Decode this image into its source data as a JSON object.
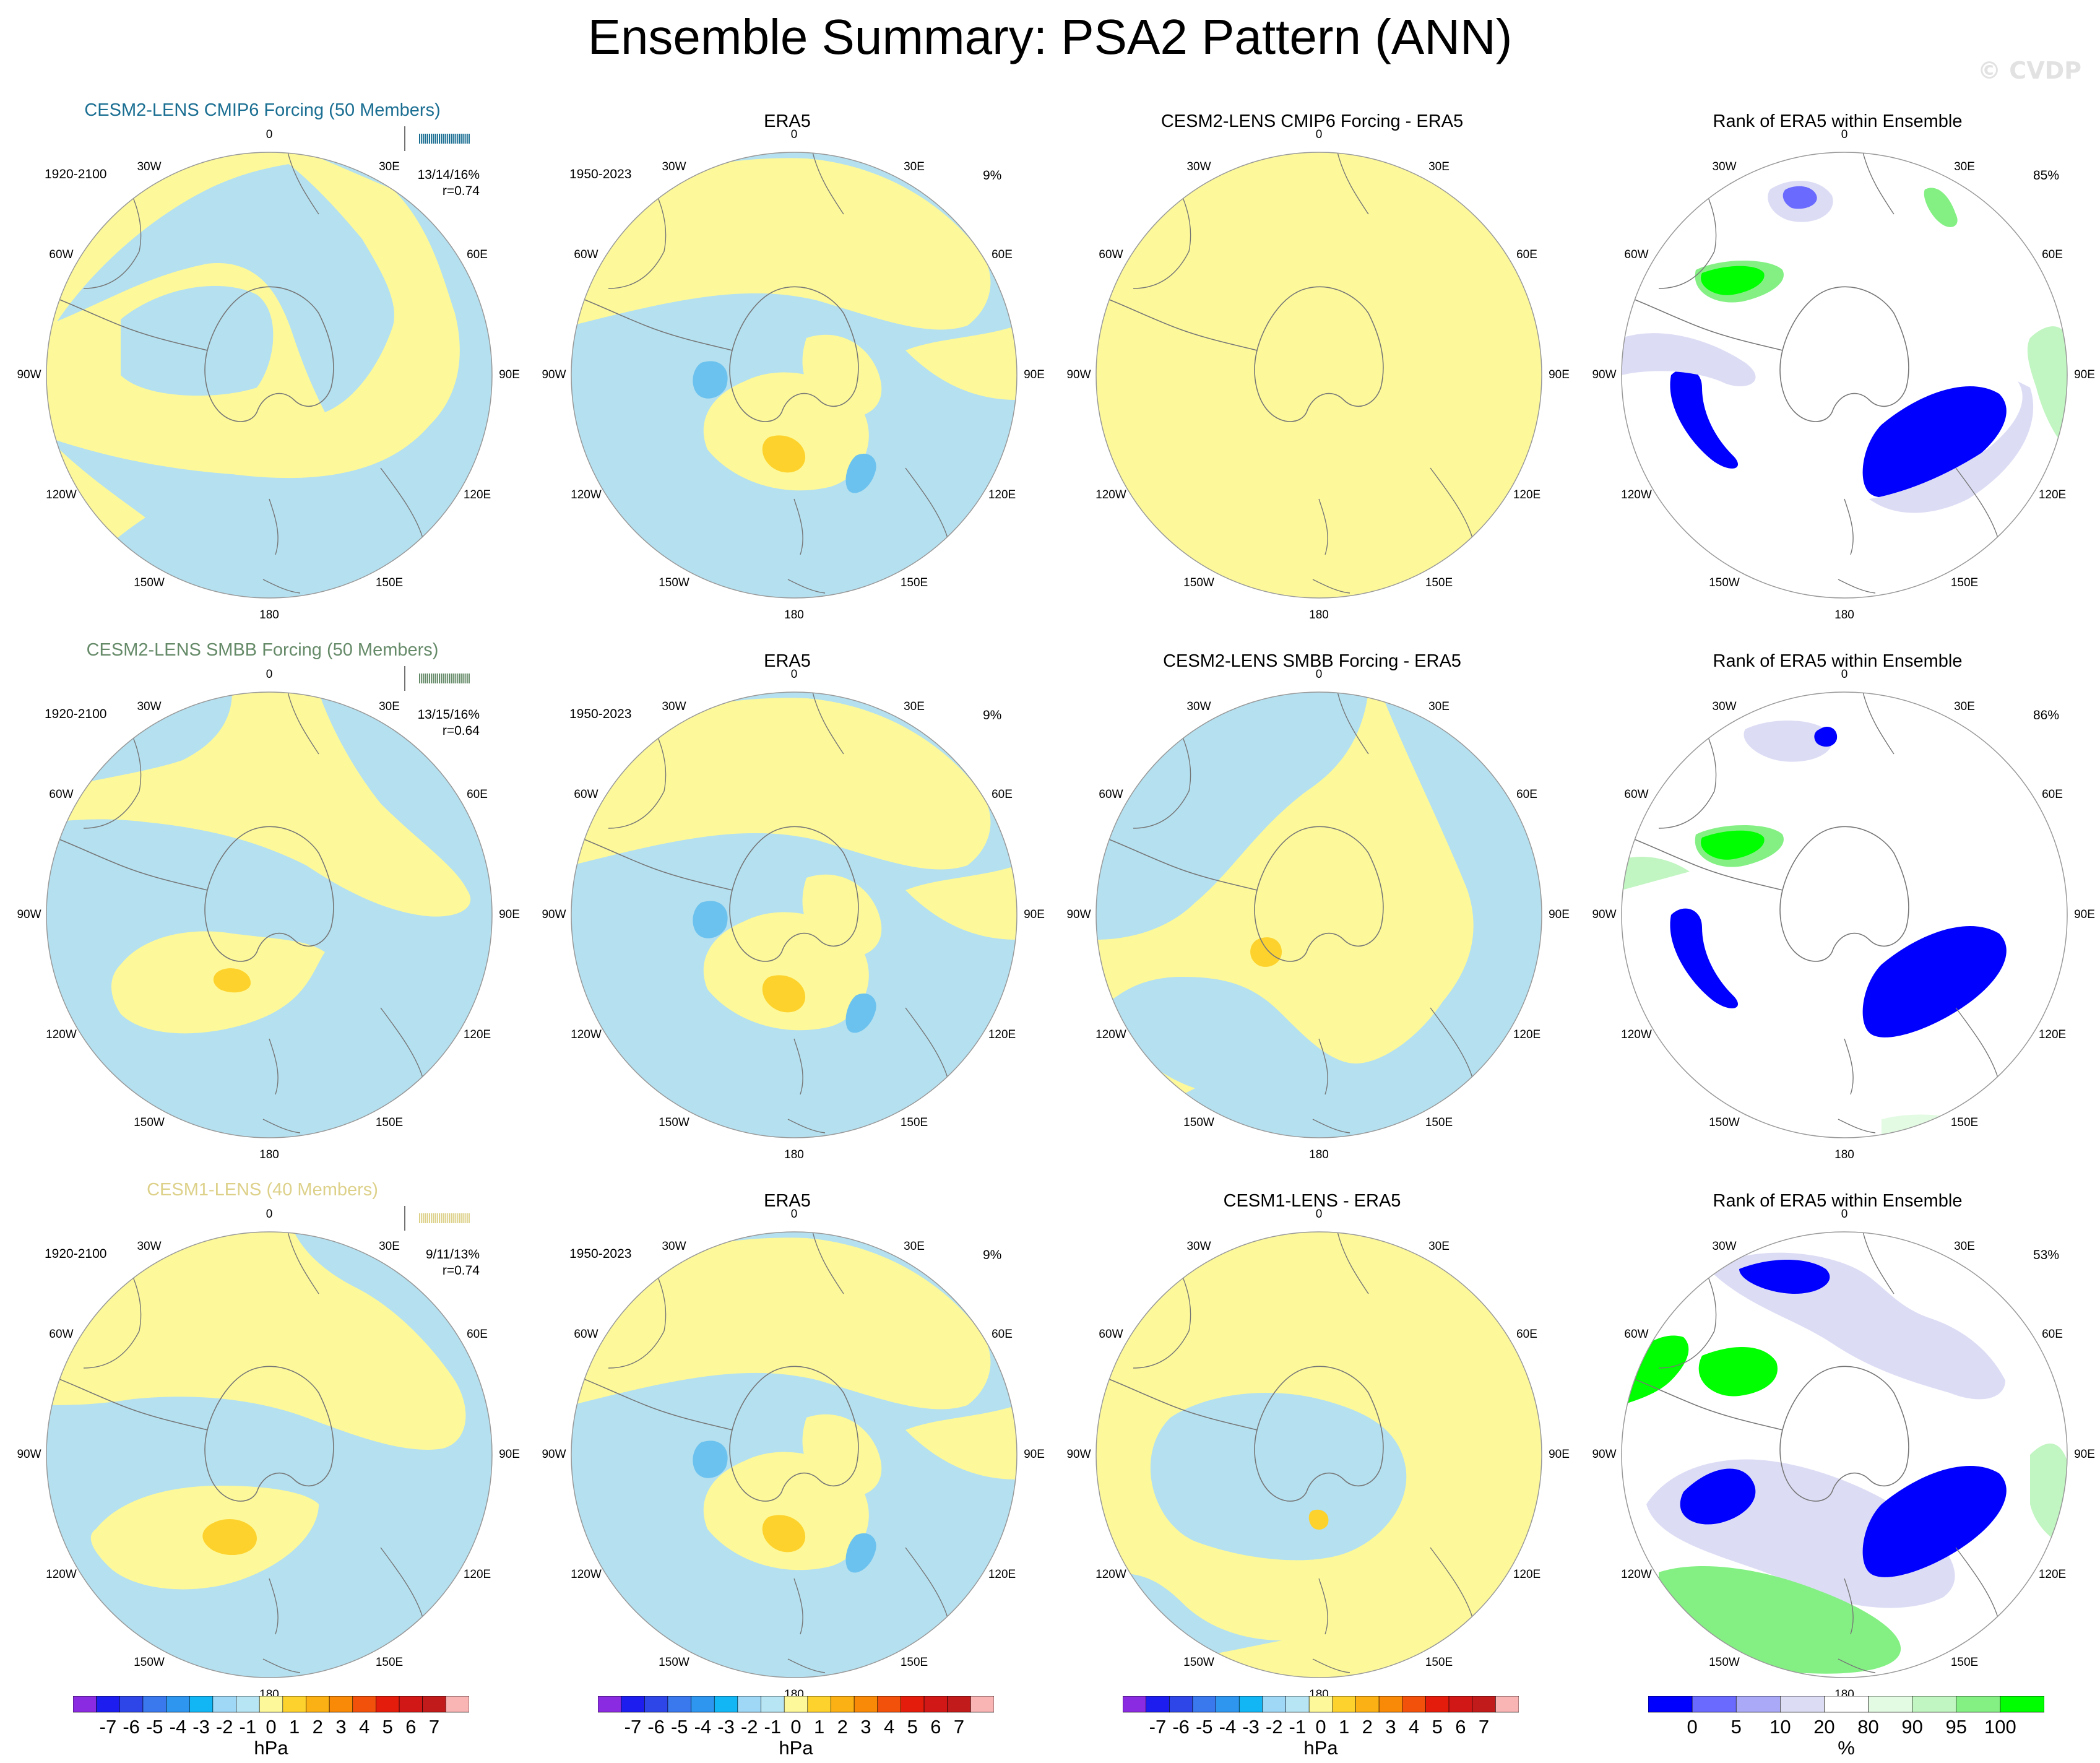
{
  "title": "Ensemble Summary: PSA2 Pattern (ANN)",
  "watermark": "© CVDP",
  "colors": {
    "pos_light": "#fdf99a",
    "neg_light": "#b4e0f0",
    "pos_mid": "#fdd22d",
    "neg_mid": "#6cc2ee",
    "ocean_line": "#777777",
    "title_row1": "#1a6e92",
    "title_row2": "#658a68",
    "title_row3": "#ddd18a"
  },
  "polar_labels": [
    "0",
    "30E",
    "60E",
    "90E",
    "120E",
    "150E",
    "180",
    "150W",
    "120W",
    "90W",
    "60W",
    "30W"
  ],
  "rows": [
    {
      "model": {
        "title": "CESM2-LENS CMIP6 Forcing (50 Members)",
        "period": "1920-2100",
        "stats": "13/14/16%",
        "r": "r=0.74",
        "title_color": "#1a6e92"
      },
      "obs": {
        "title": "ERA5",
        "period": "1950-2023",
        "pct": "9%"
      },
      "diff": {
        "title": "CESM2-LENS CMIP6 Forcing - ERA5"
      },
      "rank": {
        "title": "Rank of ERA5 within Ensemble",
        "pct": "85%"
      }
    },
    {
      "model": {
        "title": "CESM2-LENS SMBB Forcing (50 Members)",
        "period": "1920-2100",
        "stats": "13/15/16%",
        "r": "r=0.64",
        "title_color": "#658a68"
      },
      "obs": {
        "title": "ERA5",
        "period": "1950-2023",
        "pct": "9%"
      },
      "diff": {
        "title": "CESM2-LENS SMBB Forcing - ERA5"
      },
      "rank": {
        "title": "Rank of ERA5 within Ensemble",
        "pct": "86%"
      }
    },
    {
      "model": {
        "title": "CESM1-LENS (40 Members)",
        "period": "1920-2100",
        "stats": "9/11/13%",
        "r": "r=0.74",
        "title_color": "#ddd18a"
      },
      "obs": {
        "title": "ERA5",
        "period": "1950-2023",
        "pct": "9%"
      },
      "diff": {
        "title": "CESM1-LENS - ERA5"
      },
      "rank": {
        "title": "Rank of ERA5 within Ensemble",
        "pct": "53%"
      }
    }
  ],
  "chart_data": [
    {
      "type": "heatmap",
      "name_note": "",
      "colorbar_hpa": {
        "labels": [
          "-7",
          "-6",
          "-5",
          "-4",
          "-3",
          "-2",
          "-1",
          "0",
          "1",
          "2",
          "3",
          "4",
          "5",
          "6",
          "7"
        ],
        "unit": "hPa",
        "colors": [
          "#8a2be2",
          "#1d1df0",
          "#2e46e8",
          "#3a78ee",
          "#2f96f0",
          "#12b6f5",
          "#9fd8f6",
          "#b8e5f3",
          "#fdf99a",
          "#fdd22d",
          "#fbb014",
          "#f88a08",
          "#f2510c",
          "#e31c0c",
          "#d21717",
          "#c21b1b",
          "#f9b4b4"
        ]
      },
      "colorbar_rank": {
        "labels": [
          "0",
          "5",
          "10",
          "20",
          "80",
          "90",
          "95",
          "100"
        ],
        "unit": "%",
        "colors": [
          "#0000ff",
          "#6a6aff",
          "#a9a9f7",
          "#dcdcf5",
          "#ffffff",
          "#e3fbe3",
          "#c1f5c1",
          "#84f084",
          "#00ff00"
        ]
      }
    }
  ]
}
